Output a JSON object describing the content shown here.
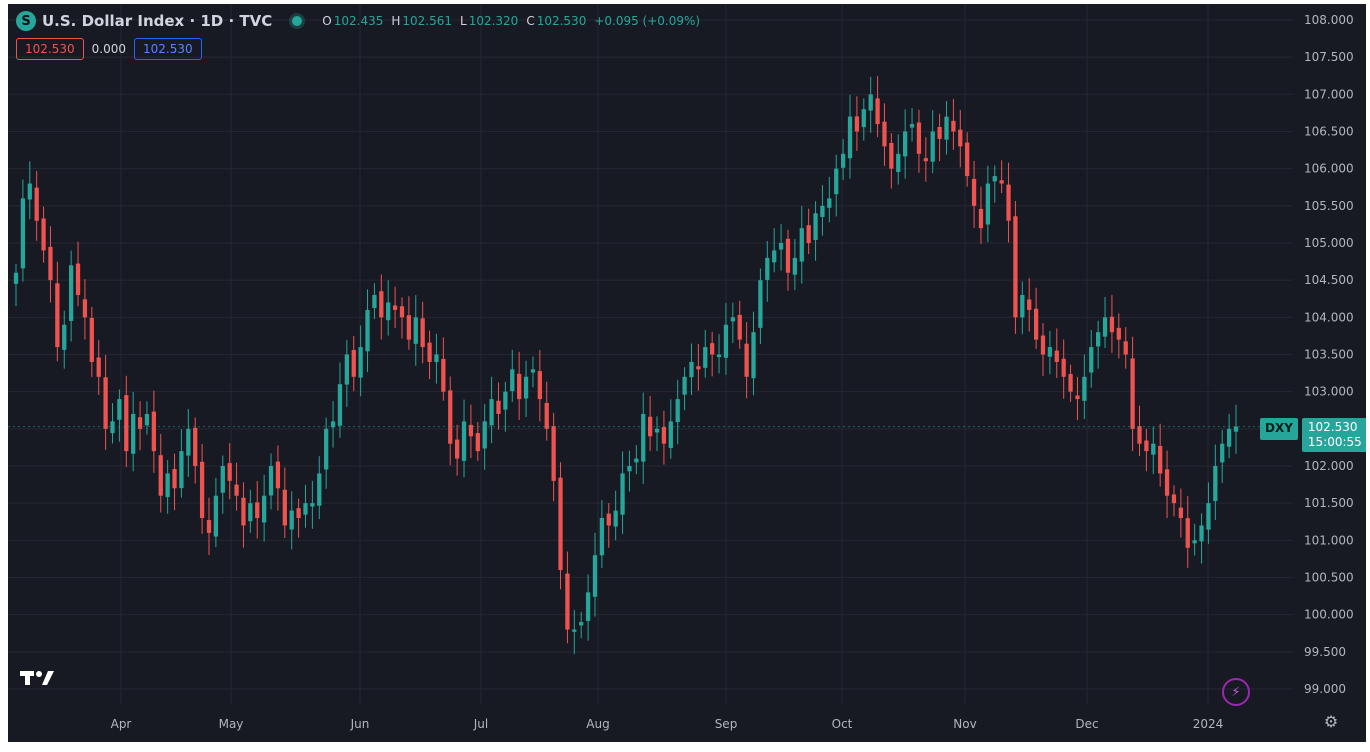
{
  "header": {
    "logo_letter": "S",
    "title": "U.S. Dollar Index · 1D · TVC",
    "ohlc": [
      {
        "label": "O",
        "value": "102.435"
      },
      {
        "label": "H",
        "value": "102.561"
      },
      {
        "label": "L",
        "value": "102.320"
      },
      {
        "label": "C",
        "value": "102.530"
      }
    ],
    "change": "+0.095 (+0.09%)"
  },
  "inputs": {
    "red_value": "102.530",
    "plain_value": "0.000",
    "blue_value": "102.530"
  },
  "price_tag": {
    "symbol": "DXY",
    "price": "102.530",
    "countdown": "15:00:55"
  },
  "watermark": "TV",
  "colors": {
    "up": "#26a69a",
    "down": "#ef5350",
    "background": "#181a23",
    "grid": "#242733",
    "text": "#b2b5be"
  },
  "icons": {
    "bolt": "lightning-bolt-icon",
    "settings": "gear-icon"
  },
  "chart_data": {
    "type": "candlestick",
    "title": "U.S. Dollar Index · 1D · TVC",
    "ylim": [
      98.9,
      108.1
    ],
    "y_ticks": [
      "108.000",
      "107.500",
      "107.000",
      "106.500",
      "106.000",
      "105.500",
      "105.000",
      "104.500",
      "104.000",
      "103.500",
      "103.000",
      "102.500",
      "102.000",
      "101.500",
      "101.000",
      "100.500",
      "100.000",
      "99.500",
      "99.000"
    ],
    "x_ticks": [
      "Apr",
      "May",
      "Jun",
      "Jul",
      "Aug",
      "Sep",
      "Oct",
      "Nov",
      "Dec",
      "2024"
    ],
    "grid": true,
    "last_price": 102.53,
    "closes": [
      104.6,
      105.6,
      105.8,
      105.3,
      104.9,
      104.5,
      103.6,
      103.9,
      104.7,
      104.3,
      104.0,
      103.4,
      103.2,
      102.5,
      102.6,
      102.9,
      102.2,
      102.7,
      102.5,
      102.7,
      102.2,
      101.6,
      101.9,
      101.7,
      102.2,
      102.5,
      102.0,
      101.3,
      101.1,
      101.6,
      102.0,
      101.8,
      101.6,
      101.2,
      101.5,
      101.3,
      101.6,
      102.0,
      101.7,
      101.2,
      101.4,
      101.3,
      101.5,
      101.5,
      101.9,
      102.5,
      102.6,
      103.1,
      103.5,
      103.2,
      103.6,
      104.1,
      104.3,
      104.0,
      104.2,
      104.1,
      104.0,
      103.7,
      104.0,
      103.6,
      103.4,
      103.5,
      103.0,
      102.3,
      102.1,
      102.6,
      102.4,
      102.2,
      102.6,
      102.9,
      102.7,
      103.0,
      103.3,
      102.9,
      103.2,
      103.3,
      102.9,
      102.5,
      101.8,
      100.6,
      99.8,
      99.8,
      99.9,
      100.3,
      100.8,
      101.3,
      101.2,
      101.4,
      101.9,
      102.0,
      102.1,
      102.7,
      102.4,
      102.5,
      102.3,
      102.6,
      102.9,
      103.2,
      103.4,
      103.3,
      103.6,
      103.5,
      103.5,
      103.9,
      104.0,
      103.7,
      103.2,
      103.8,
      104.5,
      104.8,
      104.9,
      105.0,
      104.6,
      104.8,
      105.2,
      105.0,
      105.4,
      105.5,
      105.6,
      106.0,
      106.2,
      106.7,
      106.5,
      106.8,
      107.0,
      106.6,
      106.3,
      106.0,
      106.2,
      106.5,
      106.6,
      106.2,
      106.1,
      106.5,
      106.4,
      106.7,
      106.5,
      106.3,
      105.9,
      105.5,
      105.2,
      105.8,
      105.9,
      105.8,
      105.3,
      104.0,
      104.3,
      104.1,
      103.7,
      103.5,
      103.6,
      103.4,
      103.2,
      103.0,
      102.9,
      103.2,
      103.6,
      103.8,
      104.0,
      103.8,
      103.7,
      103.5,
      102.5,
      102.3,
      102.2,
      102.3,
      101.9,
      101.6,
      101.5,
      101.3,
      100.9,
      101.0,
      101.2,
      101.5,
      102.0,
      102.3,
      102.5,
      102.53
    ]
  }
}
